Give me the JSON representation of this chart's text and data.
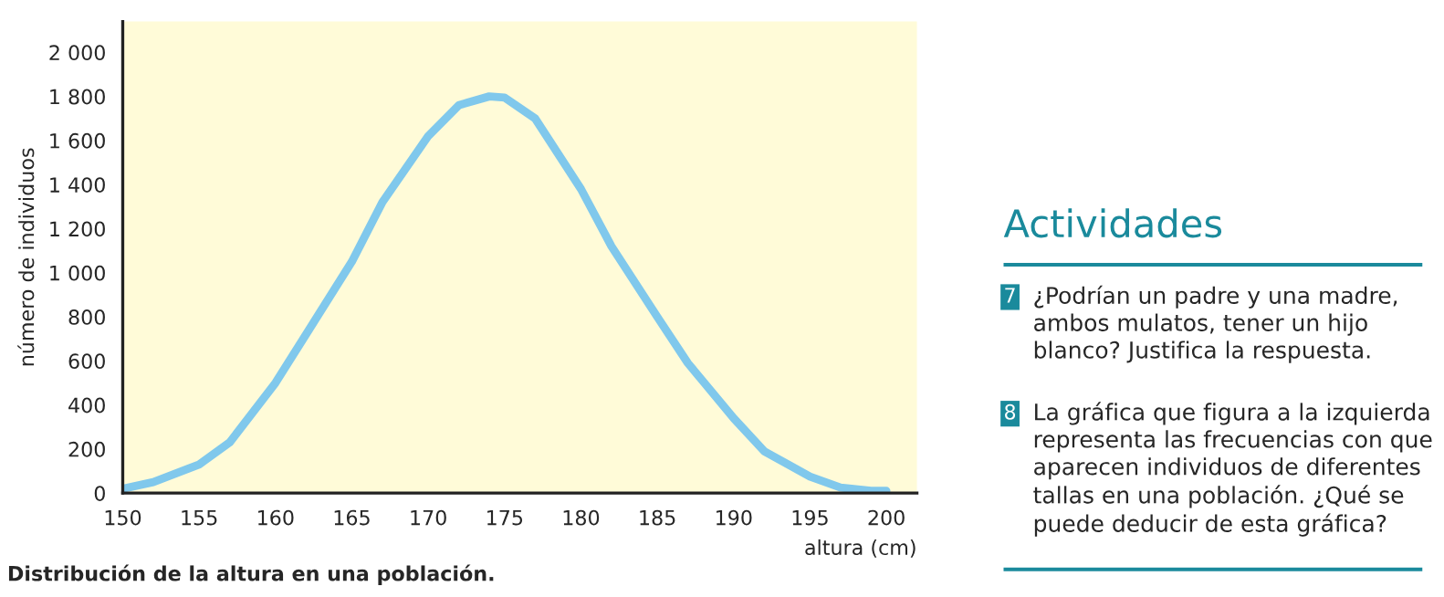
{
  "chart_data": [
    {
      "type": "line",
      "xlabel": "altura (cm)",
      "ylabel": "número de individuos",
      "x": [
        150,
        152,
        155,
        157,
        160,
        162,
        165,
        167,
        170,
        172,
        174,
        175,
        177,
        180,
        182,
        185,
        187,
        190,
        192,
        195,
        197,
        199,
        200
      ],
      "series": [
        {
          "color": "#80c8ec",
          "values": [
            20,
            50,
            130,
            230,
            500,
            720,
            1050,
            1320,
            1620,
            1760,
            1800,
            1795,
            1700,
            1380,
            1120,
            800,
            590,
            340,
            190,
            75,
            25,
            10,
            10
          ]
        }
      ],
      "xlim": [
        150,
        202
      ],
      "ylim": [
        0,
        2140
      ],
      "xticks": [
        150,
        155,
        160,
        165,
        170,
        175,
        180,
        185,
        190,
        195,
        200
      ],
      "yticks": [
        0,
        200,
        400,
        600,
        800,
        {
          "value": 1000,
          "label": "1 000"
        },
        {
          "value": 1200,
          "label": "1 200"
        },
        {
          "value": 1400,
          "label": "1 400"
        },
        {
          "value": 1600,
          "label": "1 600"
        },
        {
          "value": 1800,
          "label": "1 800"
        },
        {
          "value": 2000,
          "label": "2 000"
        }
      ],
      "grid": false,
      "legend": false,
      "marker": "none",
      "line_style": "solid",
      "annotations": [
        "Distribución de la altura en una población."
      ]
    },
    {
      "type": "other",
      "title": "Actividades",
      "annotations": [
        "7",
        "¿Podrían un padre y una madre, ambos mulatos, tener un hijo blanco? Justifica la respuesta.",
        "8",
        "La gráfica que figura a la izquierda representa las frecuencias con que aparecen individuos de diferentes tallas en una población. ¿Qué se puede deducir de esta gráfica?"
      ]
    }
  ]
}
